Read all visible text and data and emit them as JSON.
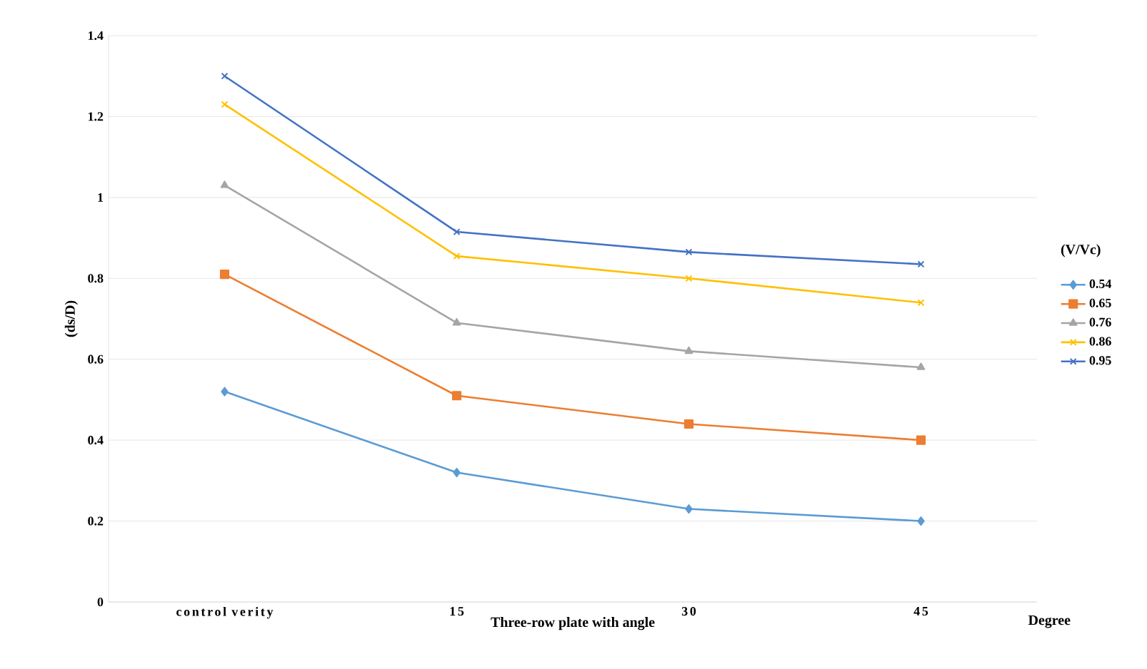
{
  "chart_data": {
    "type": "line",
    "xlabel": "Three-row plate with angle",
    "ylabel": "(ds/D)",
    "legend_title": "(V/Vc)",
    "annotations": [
      "Degree"
    ],
    "categories": [
      "control verity",
      "15",
      "30",
      "45"
    ],
    "ylim": [
      0,
      1.4
    ],
    "yticks": [
      0,
      0.2,
      0.4,
      0.6,
      0.8,
      1,
      1.2,
      1.4
    ],
    "grid": "y",
    "legend": "right",
    "series": [
      {
        "name": "0.54",
        "color": "#5b9bd5",
        "marker": "diamond",
        "values": [
          0.52,
          0.32,
          0.23,
          0.2
        ]
      },
      {
        "name": "0.65",
        "color": "#ed7d31",
        "marker": "square",
        "values": [
          0.81,
          0.51,
          0.44,
          0.4
        ]
      },
      {
        "name": "0.76",
        "color": "#a5a5a5",
        "marker": "triangle",
        "values": [
          1.03,
          0.69,
          0.62,
          0.58
        ]
      },
      {
        "name": "0.86",
        "color": "#ffc000",
        "marker": "cross",
        "values": [
          1.23,
          0.855,
          0.8,
          0.74
        ]
      },
      {
        "name": "0.95",
        "color": "#4472c4",
        "marker": "cross",
        "values": [
          1.3,
          0.915,
          0.865,
          0.835
        ]
      }
    ]
  }
}
